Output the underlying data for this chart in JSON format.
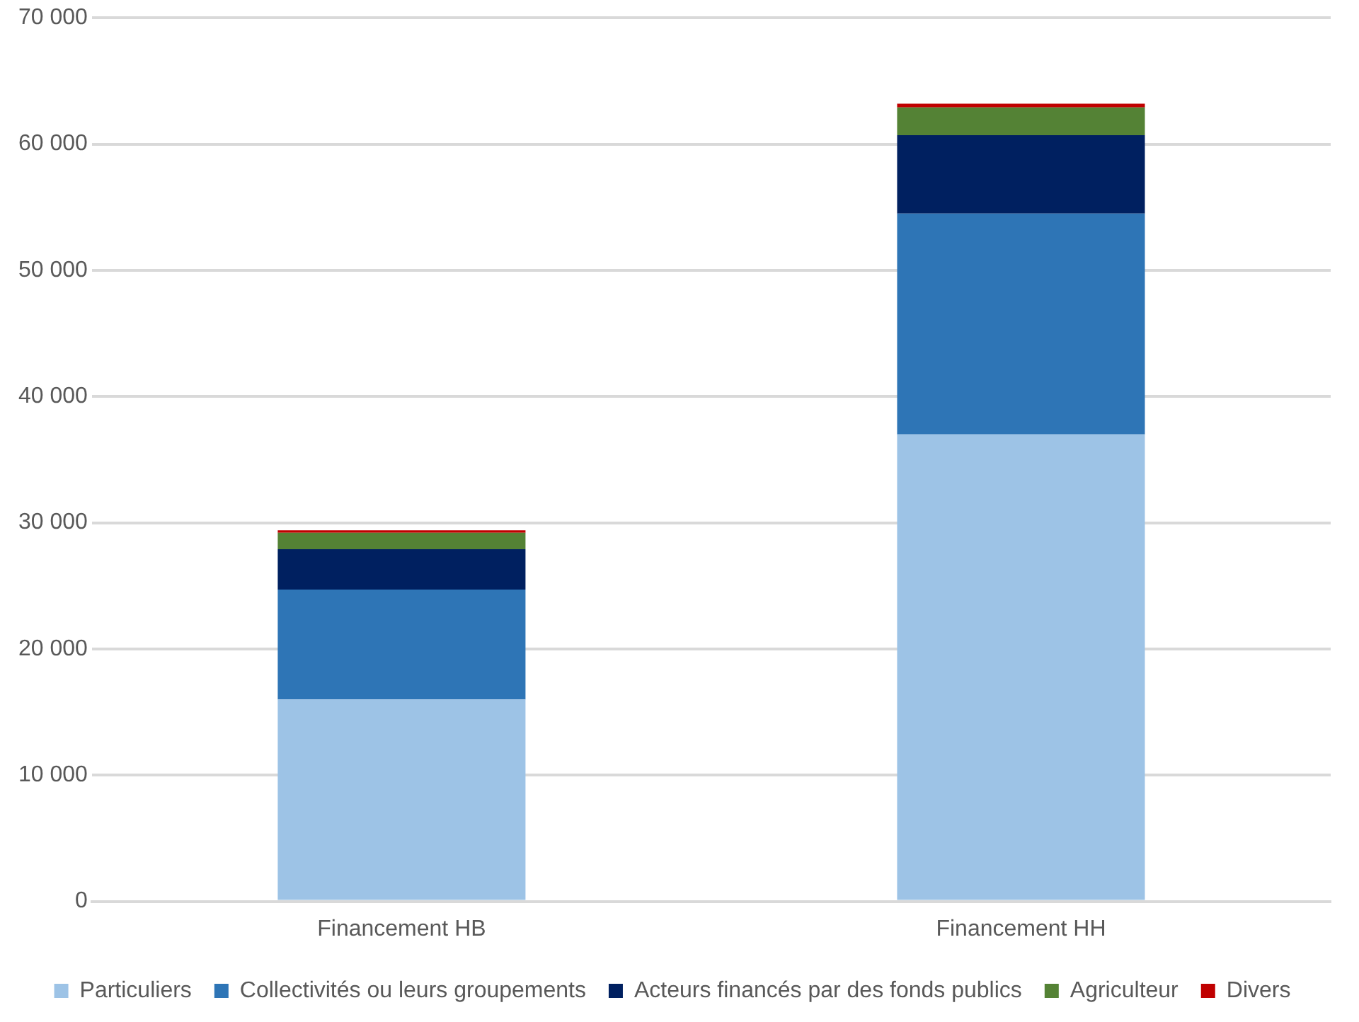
{
  "chart_data": {
    "type": "bar",
    "stacked": true,
    "categories": [
      "Financement HB",
      "Financement HH"
    ],
    "series": [
      {
        "name": "Particuliers",
        "color": "#9dc3e6",
        "values": [
          16000,
          37000
        ]
      },
      {
        "name": "Collectivités ou leurs groupements",
        "color": "#2e75b6",
        "values": [
          8700,
          17500
        ]
      },
      {
        "name": "Acteurs financés par des fonds publics",
        "color": "#002060",
        "values": [
          3200,
          6200
        ]
      },
      {
        "name": "Agriculteur",
        "color": "#548235",
        "values": [
          1300,
          2200
        ]
      },
      {
        "name": "Divers",
        "color": "#c00000",
        "values": [
          200,
          300
        ]
      }
    ],
    "ylim": [
      0,
      70000
    ],
    "yticks": [
      0,
      {
        "value": 10000,
        "label": "10 000"
      },
      {
        "value": 20000,
        "label": "20 000"
      },
      {
        "value": 30000,
        "label": "30 000"
      },
      {
        "value": 40000,
        "label": "40 000"
      },
      {
        "value": 50000,
        "label": "50 000"
      },
      {
        "value": 60000,
        "label": "60 000"
      },
      {
        "value": 70000,
        "label": "70 000"
      }
    ],
    "grid": "y",
    "legend": "bottom"
  }
}
